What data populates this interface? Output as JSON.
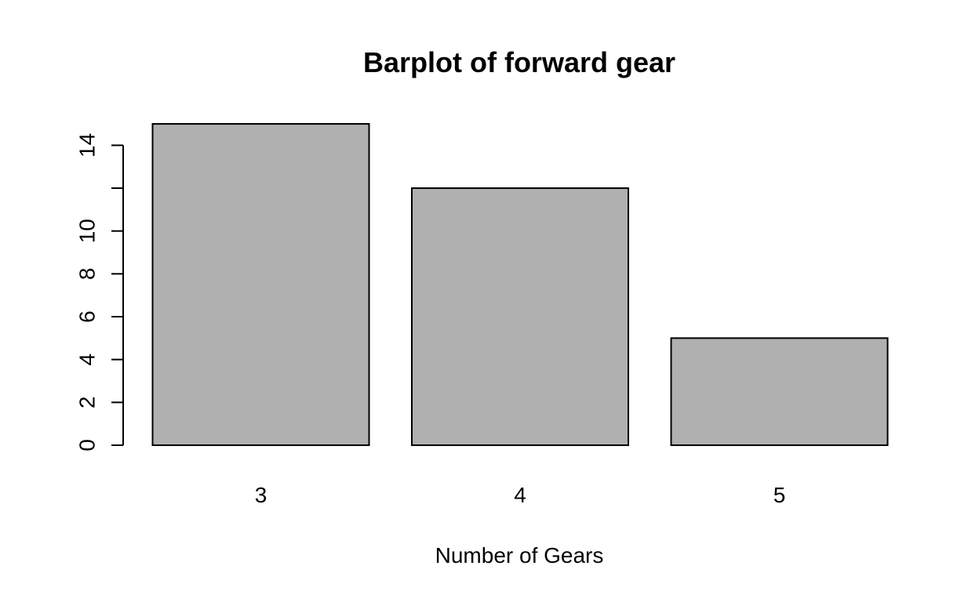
{
  "chart_data": {
    "type": "bar",
    "title": "Barplot of forward gear",
    "xlabel": "Number of Gears",
    "ylabel": "",
    "categories": [
      "3",
      "4",
      "5"
    ],
    "values": [
      15,
      12,
      5
    ],
    "ylim": [
      0,
      15
    ],
    "yticks": [
      0,
      2,
      4,
      6,
      8,
      10,
      12,
      14
    ],
    "ytick_labels": [
      "0",
      "2",
      "4",
      "6",
      "8",
      "10",
      "",
      "14"
    ],
    "grid": false,
    "bar_fill": "#b0b0b0",
    "bar_stroke": "#000000"
  }
}
